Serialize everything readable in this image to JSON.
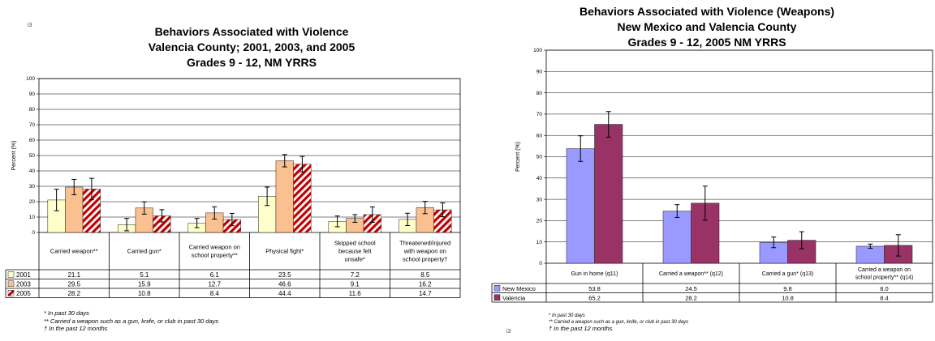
{
  "left_page_mark": "i3",
  "right_page_mark": "i3",
  "chart_data": [
    {
      "type": "bar",
      "title_lines": [
        "Behaviors Associated with Violence",
        "Valencia County; 2001, 2003, and 2005",
        "Grades 9 - 12, NM YRRS"
      ],
      "ylabel": "Percent (%)",
      "ylim": [
        0,
        100
      ],
      "yticks": [
        "0",
        "10",
        "20",
        "30",
        "40",
        "50",
        "60",
        "70",
        "80",
        "90",
        "100"
      ],
      "grid": true,
      "categories": [
        [
          "Carried weapon**"
        ],
        [
          "Carried gun*"
        ],
        [
          "Carried weapon on",
          "school property**"
        ],
        [
          "Physical fight*"
        ],
        [
          "Skipped school",
          "because felt",
          "unsafe*"
        ],
        [
          "Threatened/injured",
          "with weapon on",
          "school property†"
        ]
      ],
      "series": [
        {
          "name": "2001",
          "values": [
            21.1,
            5.1,
            6.1,
            23.5,
            7.2,
            8.5
          ],
          "labels": [
            "21.1",
            "5.1",
            "6.1",
            "23.5",
            "7.2",
            "8.5"
          ],
          "err": [
            7,
            4,
            3,
            6,
            3.5,
            4
          ],
          "color": "#ffffcc",
          "pattern": "solid"
        },
        {
          "name": "2003",
          "values": [
            29.5,
            15.9,
            12.7,
            46.6,
            9.1,
            16.2
          ],
          "labels": [
            "29.5",
            "15.9",
            "12.7",
            "46.6",
            "9.1",
            "16.2"
          ],
          "err": [
            5,
            4,
            4,
            4,
            2.5,
            4
          ],
          "color": "#fac090",
          "pattern": "solid"
        },
        {
          "name": "2005",
          "values": [
            28.2,
            10.8,
            8.4,
            44.4,
            11.6,
            14.7
          ],
          "labels": [
            "28.2",
            "10.8",
            "8.4",
            "44.4",
            "11.6",
            "14.7"
          ],
          "err": [
            7,
            4,
            4,
            5,
            5,
            4.5
          ],
          "color": "#c00000",
          "pattern": "stripes"
        }
      ],
      "footnotes": [
        "* In past 30 days",
        "** Carried a weapon such as a gun, knife, or club in past 30 days",
        "† In the past 12 months"
      ]
    },
    {
      "type": "bar",
      "title_lines": [
        "Behaviors Associated with Violence (Weapons)",
        "New Mexico and Valencia County",
        "Grades 9 - 12, 2005 NM YRRS"
      ],
      "ylabel": "Percent (%)",
      "ylim": [
        0,
        100
      ],
      "yticks": [
        "0",
        "10",
        "20",
        "30",
        "40",
        "50",
        "60",
        "70",
        "80",
        "90",
        "100"
      ],
      "grid": true,
      "categories": [
        [
          "Gun in home (q11)"
        ],
        [
          "Carried a weapon** (q12)"
        ],
        [
          "Carried a gun* (q13)"
        ],
        [
          "Carried a weapon on",
          "school property** (q14)"
        ]
      ],
      "series": [
        {
          "name": "New Mexico",
          "values": [
            53.8,
            24.5,
            9.8,
            8.0
          ],
          "labels": [
            "53.8",
            "24.5",
            "9.8",
            "8.0"
          ],
          "err": [
            6,
            3,
            2.5,
            1
          ],
          "color": "#9999ff",
          "pattern": "solid"
        },
        {
          "name": "Valencia",
          "values": [
            65.2,
            28.2,
            10.8,
            8.4
          ],
          "labels": [
            "65.2",
            "28.2",
            "10.8",
            "8.4"
          ],
          "err": [
            6,
            8,
            4,
            5
          ],
          "color": "#993366",
          "pattern": "solid"
        }
      ],
      "footnotes": [
        "* In past 30 days",
        "** Carried a weapon such as a gun, knife, or club in past 30 days",
        "† In the past 12 months"
      ]
    }
  ]
}
